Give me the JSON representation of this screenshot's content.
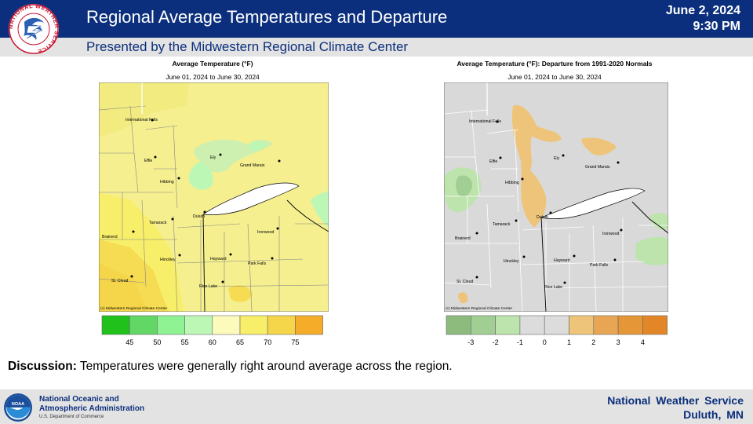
{
  "header": {
    "title": "Regional Average Temperatures and Departure",
    "subtitle": "Presented by the Midwestern Regional Climate Center",
    "date": "June 2, 2024",
    "time": "9:30 PM",
    "bg_color": "#0b2f7c"
  },
  "left_map": {
    "title": "Average Temperature (°F)",
    "dates": "June 01, 2024 to June 30, 2024",
    "credit": "(c) Midwestern Regional Climate Center",
    "legend": {
      "colors": [
        "#1fc11a",
        "#62d766",
        "#8ff293",
        "#bdf7b6",
        "#fdfbbc",
        "#f7ee6a",
        "#f5d64a",
        "#f5ad29"
      ],
      "labels": [
        "45",
        "50",
        "55",
        "60",
        "65",
        "70",
        "75"
      ]
    }
  },
  "right_map": {
    "title": "Average Temperature (°F): Departure from 1991-2020 Normals",
    "dates": "June 01, 2024 to June 30, 2024",
    "credit": "(c) Midwestern Regional Climate Center",
    "legend": {
      "colors": [
        "#8dbb7e",
        "#a1ce93",
        "#bce4ac",
        "#dcdcdc",
        "#dcdcdc",
        "#eec47a",
        "#e8a654",
        "#e59636",
        "#e38627"
      ],
      "labels": [
        "-3",
        "-2",
        "-1",
        "0",
        "1",
        "2",
        "3",
        "4"
      ]
    }
  },
  "cities": [
    "International Falls",
    "Effie",
    "Ely",
    "Grand Marais",
    "Hibbing",
    "Duluth",
    "Tamarack",
    "Ironwood",
    "Brainerd",
    "Hinckley",
    "Hayward",
    "Park Falls",
    "St. Cloud",
    "Rice Lake"
  ],
  "discussion": {
    "label": "Discussion:",
    "text": " Temperatures were generally right around average across the region."
  },
  "footer": {
    "noaa_line1": "National Oceanic and",
    "noaa_line2": "Atmospheric Administration",
    "noaa_dept": "U.S. Department of Commerce",
    "office_line1": "National  Weather Service",
    "office_line2": "Duluth,  MN"
  },
  "logos": {
    "nws_text": "NATIONAL WEATHER SERVICE",
    "noaa_text": "NOAA"
  }
}
